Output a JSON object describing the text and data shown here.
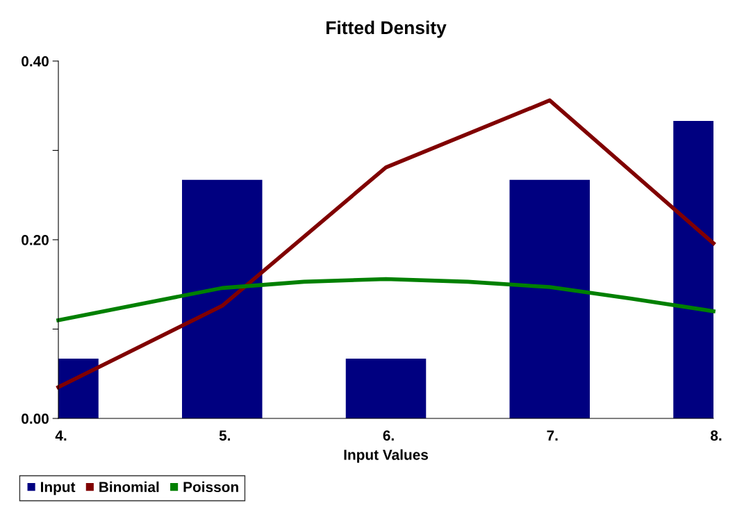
{
  "chart_data": {
    "type": "bar",
    "title": "Fitted Density",
    "xlabel": "Input Values",
    "x": [
      4,
      5,
      6,
      7,
      8
    ],
    "series": [
      {
        "name": "Input",
        "color": "#000080",
        "values": [
          0.067,
          0.267,
          0.067,
          0.267,
          0.333
        ]
      },
      {
        "name": "Binomial",
        "type": "line",
        "color": "#800000",
        "values": [
          0.035,
          0.126,
          0.281,
          0.356,
          0.196
        ]
      },
      {
        "name": "Poisson",
        "type": "line",
        "color": "#008000",
        "x": [
          4,
          4.5,
          5,
          5.5,
          6,
          6.5,
          7,
          7.5,
          8
        ],
        "values": [
          0.11,
          0.128,
          0.146,
          0.153,
          0.156,
          0.153,
          0.147,
          0.134,
          0.12
        ]
      }
    ],
    "xlim": [
      4,
      8
    ],
    "xticks": [
      {
        "value": 4,
        "label": "4."
      },
      {
        "value": 5,
        "label": "5."
      },
      {
        "value": 6,
        "label": "6."
      },
      {
        "value": 7,
        "label": "7."
      },
      {
        "value": 8,
        "label": "8."
      }
    ],
    "ylim": [
      0,
      0.4
    ],
    "yticks": [
      {
        "value": 0,
        "label": "0.00"
      },
      {
        "value": 0.1,
        "label": null
      },
      {
        "value": 0.2,
        "label": "0.20"
      },
      {
        "value": 0.3,
        "label": null
      },
      {
        "value": 0.4,
        "label": "0.40"
      }
    ],
    "grid": false,
    "legend": "bottom left",
    "marker": "none",
    "line_style": "solid"
  }
}
